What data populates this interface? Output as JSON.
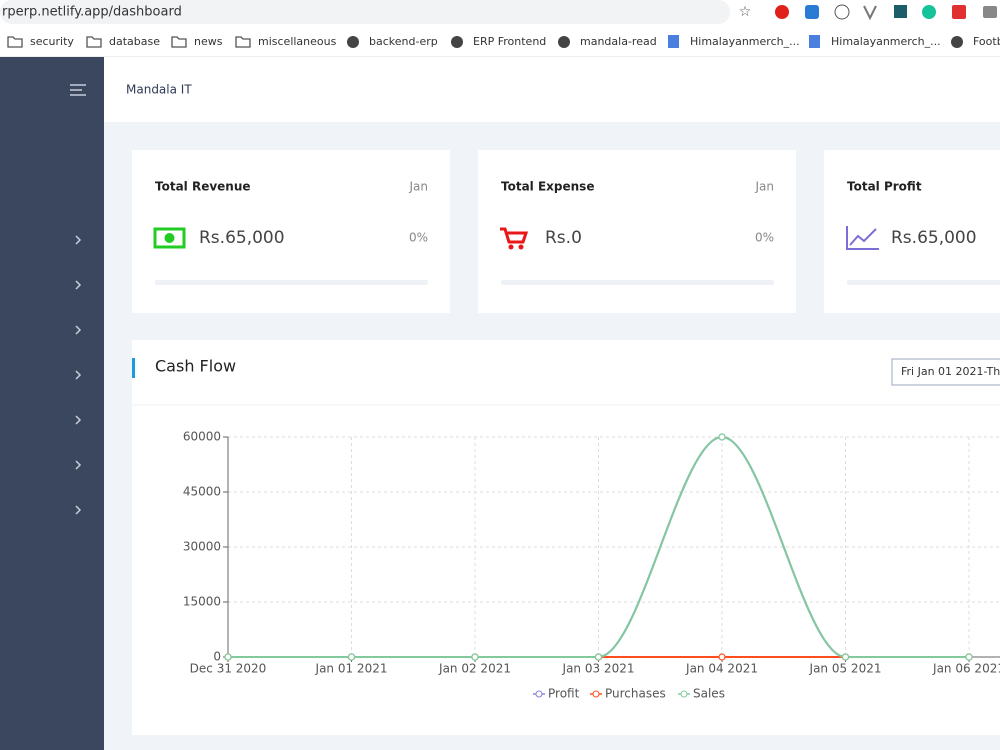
{
  "browser": {
    "url": "rperp.netlify.app/dashboard",
    "bookmarks": [
      "security",
      "database",
      "news",
      "miscellaneous",
      "backend-erp",
      "ERP Frontend",
      "mandala-read",
      "Himalayanmerch_...",
      "Himalayanmerch_...",
      "Footb"
    ]
  },
  "header": {
    "title": "Mandala IT"
  },
  "cards": [
    {
      "title": "Total Revenue",
      "period": "Jan",
      "value": "Rs.65,000",
      "change": "0%"
    },
    {
      "title": "Total Expense",
      "period": "Jan",
      "value": "Rs.0",
      "change": "0%"
    },
    {
      "title": "Total Profit",
      "value": "Rs.65,000"
    }
  ],
  "cash_flow": {
    "title": "Cash Flow",
    "date_range": "Fri Jan 01 2021-Th"
  },
  "chart_data": {
    "type": "line",
    "categories": [
      "Dec 31 2020",
      "Jan 01 2021",
      "Jan 02 2021",
      "Jan 03 2021",
      "Jan 04 2021",
      "Jan 05 2021",
      "Jan 06 2021"
    ],
    "series": [
      {
        "name": "Profit",
        "color": "#8884d8",
        "values": [
          0,
          0,
          0,
          0,
          60000,
          0,
          0
        ]
      },
      {
        "name": "Purchases",
        "color": "#ff4d1f",
        "values": [
          0,
          0,
          0,
          0,
          0,
          0,
          0
        ]
      },
      {
        "name": "Sales",
        "color": "#82ca9d",
        "values": [
          0,
          0,
          0,
          0,
          60000,
          0,
          0
        ]
      }
    ],
    "ylim": [
      0,
      60000
    ],
    "yticks": [
      0,
      15000,
      30000,
      45000,
      60000
    ],
    "grid": true,
    "smooth": true
  }
}
